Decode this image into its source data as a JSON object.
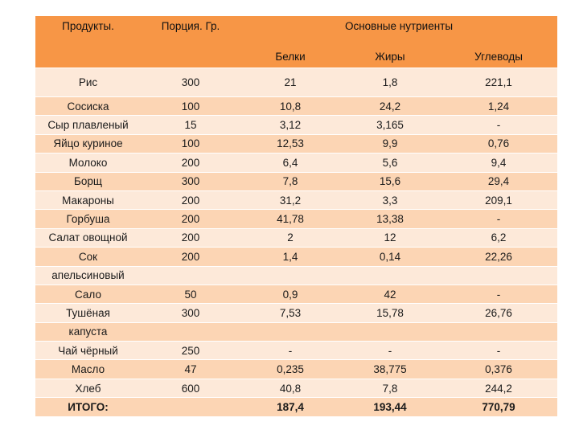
{
  "header": {
    "products": "Продукты.",
    "portion": "Порция. Гр.",
    "nutrients": "Основные нутриенты",
    "protein": "Белки",
    "fat": "Жиры",
    "carbs": "Углеводы"
  },
  "rows": [
    {
      "name": "Рис",
      "portion": "300",
      "protein": "21",
      "fat": "1,8",
      "carbs": "221,1"
    },
    {
      "name": "Сосиска",
      "portion": "100",
      "protein": "10,8",
      "fat": "24,2",
      "carbs": "1,24"
    },
    {
      "name": "Сыр плавленый",
      "portion": "15",
      "protein": "3,12",
      "fat": "3,165",
      "carbs": "-"
    },
    {
      "name": "Яйцо куриное",
      "portion": "100",
      "protein": "12,53",
      "fat": "9,9",
      "carbs": "0,76"
    },
    {
      "name": "Молоко",
      "portion": "200",
      "protein": "6,4",
      "fat": "5,6",
      "carbs": "9,4"
    },
    {
      "name": "Борщ",
      "portion": "300",
      "protein": "7,8",
      "fat": "15,6",
      "carbs": "29,4"
    },
    {
      "name": "Макароны",
      "portion": "200",
      "protein": "31,2",
      "fat": "3,3",
      "carbs": "209,1"
    },
    {
      "name": "Горбуша",
      "portion": "200",
      "protein": "41,78",
      "fat": "13,38",
      "carbs": "-"
    },
    {
      "name": "Салат овощной",
      "portion": "200",
      "protein": "2",
      "fat": "12",
      "carbs": "6,2"
    },
    {
      "name": "Сок",
      "portion": "200",
      "protein": "1,4",
      "fat": "0,14",
      "carbs": "22,26"
    },
    {
      "name": "апельсиновый",
      "portion": "",
      "protein": "",
      "fat": "",
      "carbs": ""
    },
    {
      "name": "Сало",
      "portion": "50",
      "protein": "0,9",
      "fat": "42",
      "carbs": "-"
    },
    {
      "name": "Тушёная",
      "portion": "300",
      "protein": "7,53",
      "fat": "15,78",
      "carbs": "26,76"
    },
    {
      "name": "капуста",
      "portion": "",
      "protein": "",
      "fat": "",
      "carbs": ""
    },
    {
      "name": "Чай чёрный",
      "portion": "250",
      "protein": "-",
      "fat": "-",
      "carbs": "-"
    },
    {
      "name": "Масло",
      "portion": "47",
      "protein": "0,235",
      "fat": "38,775",
      "carbs": "0,376"
    },
    {
      "name": "Хлеб",
      "portion": "600",
      "protein": "40,8",
      "fat": "7,8",
      "carbs": "244,2"
    },
    {
      "name": "ИТОГО:",
      "portion": "",
      "protein": "187,4",
      "fat": "193,44",
      "carbs": "770,79"
    }
  ],
  "colors": {
    "header": "#f79646",
    "row_light": "#fde9d9",
    "row_dark": "#fcd5b4"
  }
}
